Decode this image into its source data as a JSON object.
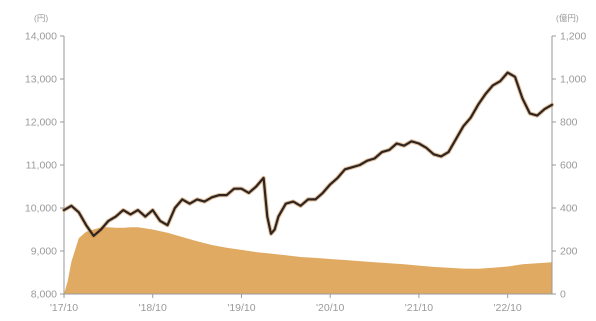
{
  "chart_data": {
    "type": "line",
    "title": "",
    "left_axis": {
      "unit": "(円)",
      "ylim": [
        8000,
        14000
      ],
      "ticks": [
        "8,000",
        "9,000",
        "10,000",
        "11,000",
        "12,000",
        "13,000",
        "14,000"
      ]
    },
    "right_axis": {
      "unit": "(億円)",
      "ylim": [
        0,
        1200
      ],
      "ticks": [
        "0",
        "200",
        "400",
        "600",
        "800",
        "1,000",
        "1,200"
      ]
    },
    "x_tick_labels": [
      "'17/10",
      "'18/10",
      "'19/10",
      "'20/10",
      "'21/10",
      "'22/10"
    ],
    "x_ticks_months": [
      0,
      12,
      24,
      36,
      48,
      60
    ],
    "x_range_months": [
      0,
      66
    ],
    "colors": {
      "line": "#2e2420",
      "line_shadow": "#c98a4a",
      "area": "#e0aa63",
      "axis": "#9a9a9a"
    },
    "series": [
      {
        "type": "line",
        "axis": "left",
        "x_months": [
          0,
          1,
          2,
          3,
          4,
          5,
          6,
          7,
          8,
          9,
          10,
          11,
          12,
          13,
          14,
          15,
          16,
          17,
          18,
          19,
          20,
          21,
          22,
          23,
          24,
          25,
          26,
          27,
          27.5,
          28,
          28.5,
          29,
          30,
          31,
          32,
          33,
          34,
          35,
          36,
          37,
          38,
          39,
          40,
          41,
          42,
          43,
          44,
          45,
          46,
          47,
          48,
          49,
          50,
          51,
          52,
          53,
          54,
          55,
          56,
          57,
          58,
          59,
          60,
          61,
          62,
          63,
          64,
          65,
          66
        ],
        "values": [
          9950,
          10050,
          9900,
          9600,
          9350,
          9500,
          9700,
          9800,
          9950,
          9850,
          9950,
          9800,
          9950,
          9700,
          9600,
          10000,
          10200,
          10100,
          10200,
          10150,
          10250,
          10300,
          10300,
          10450,
          10450,
          10350,
          10500,
          10700,
          9800,
          9400,
          9500,
          9800,
          10100,
          10150,
          10050,
          10200,
          10200,
          10350,
          10550,
          10700,
          10900,
          10950,
          11000,
          11100,
          11150,
          11300,
          11350,
          11500,
          11450,
          11550,
          11500,
          11400,
          11250,
          11200,
          11300,
          11600,
          11900,
          12100,
          12400,
          12650,
          12850,
          12950,
          13150,
          13050,
          12550,
          12200,
          12150,
          12300,
          12400
        ]
      },
      {
        "type": "area",
        "axis": "right",
        "x_months": [
          0,
          0.5,
          1,
          2,
          3,
          4,
          5,
          6,
          7,
          8,
          9,
          10,
          11,
          12,
          14,
          16,
          18,
          20,
          22,
          24,
          26,
          28,
          30,
          32,
          34,
          36,
          38,
          40,
          42,
          44,
          46,
          48,
          50,
          52,
          54,
          56,
          58,
          60,
          62,
          64,
          66
        ],
        "values": [
          0,
          60,
          150,
          260,
          290,
          300,
          310,
          310,
          308,
          308,
          310,
          310,
          305,
          300,
          285,
          265,
          245,
          228,
          215,
          205,
          195,
          188,
          180,
          172,
          168,
          163,
          158,
          153,
          148,
          143,
          138,
          132,
          126,
          122,
          118,
          117,
          122,
          128,
          138,
          143,
          148
        ]
      }
    ]
  }
}
